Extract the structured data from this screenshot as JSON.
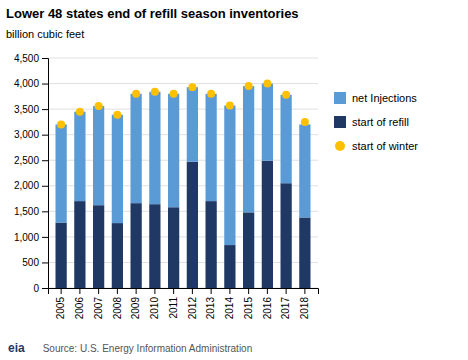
{
  "chart_data": {
    "type": "bar",
    "title": "Lower 48 states end of refill season inventories",
    "subtitle": "billion cubic feet",
    "categories": [
      "2005",
      "2006",
      "2007",
      "2008",
      "2009",
      "2010",
      "2011",
      "2012",
      "2013",
      "2014",
      "2015",
      "2016",
      "2017",
      "2018"
    ],
    "series": [
      {
        "name": "start of refill",
        "type": "bar",
        "color": "#1F3864",
        "values": [
          1280,
          1700,
          1620,
          1270,
          1660,
          1640,
          1580,
          2470,
          1700,
          840,
          1480,
          2490,
          2050,
          1380
        ]
      },
      {
        "name": "net Injections",
        "type": "bar",
        "color": "#5B9BD5",
        "values": [
          1920,
          1750,
          1940,
          2120,
          2140,
          2200,
          2220,
          1460,
          2100,
          2730,
          2470,
          1510,
          1730,
          1820
        ]
      },
      {
        "name": "start of winter",
        "type": "scatter",
        "color": "#FFC000",
        "marker": "circle",
        "values": [
          3200,
          3450,
          3560,
          3390,
          3800,
          3840,
          3800,
          3930,
          3800,
          3570,
          3950,
          4000,
          3780,
          3250
        ]
      }
    ],
    "stacked": true,
    "ylim": [
      0,
      4500
    ],
    "yticks": [
      0,
      500,
      {
        "value": 1000,
        "label": "1,000"
      },
      {
        "value": 1500,
        "label": "1,500"
      },
      {
        "value": 2000,
        "label": "2,000"
      },
      {
        "value": 2500,
        "label": "2,500"
      },
      {
        "value": 3000,
        "label": "3,000"
      },
      {
        "value": 3500,
        "label": "3,500"
      },
      {
        "value": 4000,
        "label": "4,000"
      },
      {
        "value": 4500,
        "label": "4,500"
      }
    ],
    "grid": true,
    "legend": "right",
    "annotations": [
      "eia",
      "Source: U.S. Energy Information Administration"
    ]
  }
}
